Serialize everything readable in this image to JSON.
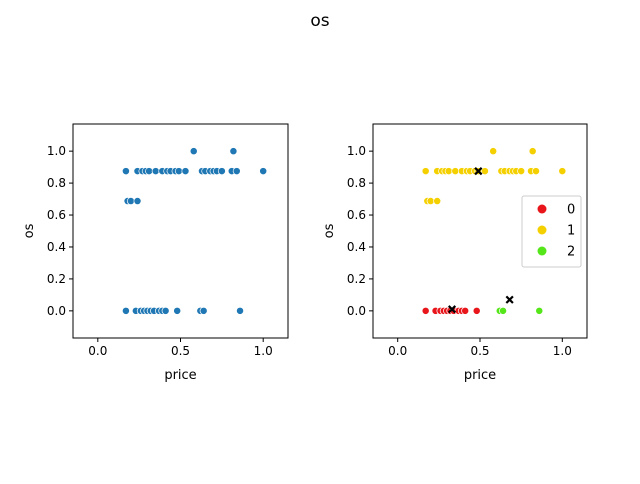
{
  "figure": {
    "suptitle": "os"
  },
  "chart_data": [
    {
      "type": "scatter",
      "xlabel": "price",
      "ylabel": "os",
      "xlim": [
        -0.15,
        1.15
      ],
      "ylim": [
        -0.17,
        1.17
      ],
      "xticks": [
        0.0,
        0.5,
        1.0
      ],
      "xtick_labels": [
        "0.0",
        "0.5",
        "1.0"
      ],
      "yticks": [
        0.0,
        0.2,
        0.4,
        0.6,
        0.8,
        1.0
      ],
      "ytick_labels": [
        "0.0",
        "0.2",
        "0.4",
        "0.6",
        "0.8",
        "1.0"
      ],
      "grid": false,
      "series": [
        {
          "marker": "circle",
          "color": "#1f77b4",
          "points": [
            [
              0.17,
              0.875
            ],
            [
              0.24,
              0.875
            ],
            [
              0.27,
              0.875
            ],
            [
              0.29,
              0.875
            ],
            [
              0.31,
              0.875
            ],
            [
              0.35,
              0.875
            ],
            [
              0.39,
              0.875
            ],
            [
              0.42,
              0.875
            ],
            [
              0.44,
              0.875
            ],
            [
              0.47,
              0.875
            ],
            [
              0.49,
              0.875
            ],
            [
              0.53,
              0.875
            ],
            [
              0.63,
              0.875
            ],
            [
              0.65,
              0.875
            ],
            [
              0.68,
              0.875
            ],
            [
              0.7,
              0.875
            ],
            [
              0.72,
              0.875
            ],
            [
              0.75,
              0.875
            ],
            [
              0.81,
              0.875
            ],
            [
              0.84,
              0.875
            ],
            [
              1.0,
              0.875
            ],
            [
              0.58,
              1.0
            ],
            [
              0.82,
              1.0
            ],
            [
              0.18,
              0.6875
            ],
            [
              0.2,
              0.6875
            ],
            [
              0.24,
              0.6875
            ],
            [
              0.17,
              0.0
            ],
            [
              0.23,
              0.0
            ],
            [
              0.26,
              0.0
            ],
            [
              0.28,
              0.0
            ],
            [
              0.3,
              0.0
            ],
            [
              0.32,
              0.0
            ],
            [
              0.34,
              0.0
            ],
            [
              0.37,
              0.0
            ],
            [
              0.39,
              0.0
            ],
            [
              0.41,
              0.0
            ],
            [
              0.48,
              0.0
            ],
            [
              0.62,
              0.0
            ],
            [
              0.64,
              0.0
            ],
            [
              0.86,
              0.0
            ]
          ]
        }
      ]
    },
    {
      "type": "scatter",
      "xlabel": "price",
      "ylabel": "os",
      "xlim": [
        -0.15,
        1.15
      ],
      "ylim": [
        -0.17,
        1.17
      ],
      "xticks": [
        0.0,
        0.5,
        1.0
      ],
      "xtick_labels": [
        "0.0",
        "0.5",
        "1.0"
      ],
      "yticks": [
        0.0,
        0.2,
        0.4,
        0.6,
        0.8,
        1.0
      ],
      "ytick_labels": [
        "0.0",
        "0.2",
        "0.4",
        "0.6",
        "0.8",
        "1.0"
      ],
      "grid": false,
      "legend": {
        "placement": "center-right"
      },
      "series": [
        {
          "name": "0",
          "color": "#e8161b",
          "marker": "circle",
          "points": [
            [
              0.17,
              0.0
            ],
            [
              0.23,
              0.0
            ],
            [
              0.26,
              0.0
            ],
            [
              0.28,
              0.0
            ],
            [
              0.3,
              0.0
            ],
            [
              0.32,
              0.0
            ],
            [
              0.34,
              0.0
            ],
            [
              0.37,
              0.0
            ],
            [
              0.39,
              0.0
            ],
            [
              0.41,
              0.0
            ],
            [
              0.48,
              0.0
            ]
          ]
        },
        {
          "name": "1",
          "color": "#f5d000",
          "marker": "circle",
          "points": [
            [
              0.17,
              0.875
            ],
            [
              0.24,
              0.875
            ],
            [
              0.27,
              0.875
            ],
            [
              0.29,
              0.875
            ],
            [
              0.31,
              0.875
            ],
            [
              0.35,
              0.875
            ],
            [
              0.39,
              0.875
            ],
            [
              0.42,
              0.875
            ],
            [
              0.44,
              0.875
            ],
            [
              0.47,
              0.875
            ],
            [
              0.49,
              0.875
            ],
            [
              0.53,
              0.875
            ],
            [
              0.63,
              0.875
            ],
            [
              0.65,
              0.875
            ],
            [
              0.68,
              0.875
            ],
            [
              0.7,
              0.875
            ],
            [
              0.72,
              0.875
            ],
            [
              0.75,
              0.875
            ],
            [
              0.81,
              0.875
            ],
            [
              0.84,
              0.875
            ],
            [
              1.0,
              0.875
            ],
            [
              0.58,
              1.0
            ],
            [
              0.82,
              1.0
            ],
            [
              0.18,
              0.6875
            ],
            [
              0.2,
              0.6875
            ],
            [
              0.24,
              0.6875
            ]
          ]
        },
        {
          "name": "2",
          "color": "#55e61a",
          "marker": "circle",
          "points": [
            [
              0.62,
              0.0
            ],
            [
              0.64,
              0.0
            ],
            [
              0.86,
              0.0
            ]
          ]
        }
      ],
      "centroids": {
        "marker": "x",
        "color": "#000000",
        "points": [
          [
            0.33,
            0.01
          ],
          [
            0.49,
            0.875
          ],
          [
            0.68,
            0.07
          ]
        ]
      }
    }
  ]
}
